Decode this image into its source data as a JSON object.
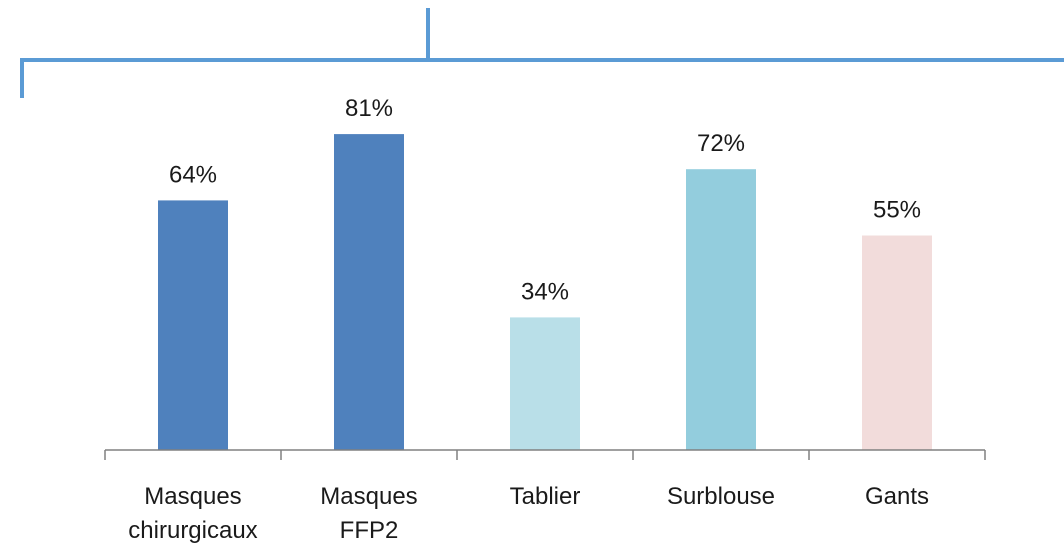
{
  "chart_data": {
    "type": "bar",
    "categories": [
      [
        "Masques",
        "chirurgicaux"
      ],
      [
        "Masques",
        "FFP2"
      ],
      [
        "Tablier"
      ],
      [
        "Surblouse"
      ],
      [
        "Gants"
      ]
    ],
    "values": [
      64,
      81,
      34,
      72,
      55
    ],
    "value_labels": [
      "64%",
      "81%",
      "34%",
      "72%",
      "55%"
    ],
    "bar_colors": [
      "#4f81bd",
      "#4f81bd",
      "#b9dfe8",
      "#93cddd",
      "#f2dcdb"
    ],
    "ylim": [
      0,
      100
    ],
    "grid": false,
    "legend": "none",
    "title": "",
    "xlabel": "",
    "ylabel": ""
  },
  "decor": {
    "bracket_color": "#5b9bd5",
    "axis_color": "#808080"
  }
}
